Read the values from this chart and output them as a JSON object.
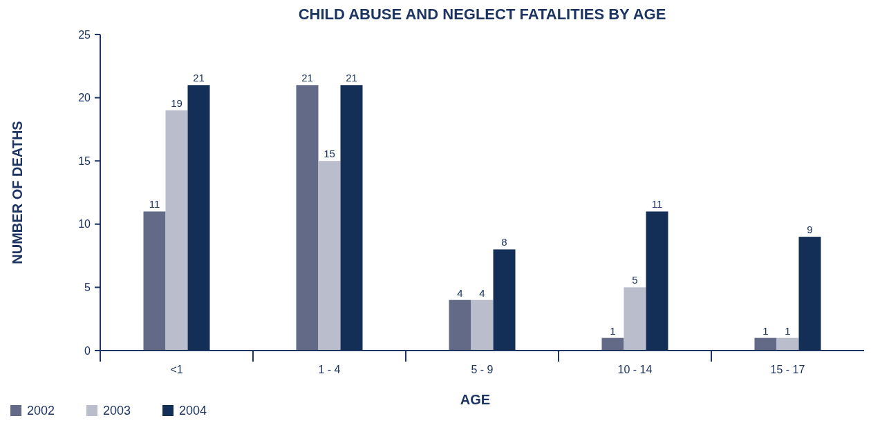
{
  "chart_data": {
    "type": "bar",
    "title": "CHILD ABUSE AND NEGLECT FATALITIES BY AGE",
    "xlabel": "AGE",
    "ylabel": "NUMBER OF DEATHS",
    "categories": [
      "<1",
      "1 - 4",
      "5 - 9",
      "10 - 14",
      "15 - 17"
    ],
    "series": [
      {
        "name": "2002",
        "color": "#636a87",
        "values": [
          11,
          21,
          4,
          1,
          1
        ]
      },
      {
        "name": "2003",
        "color": "#babdcb",
        "values": [
          19,
          15,
          4,
          5,
          1
        ]
      },
      {
        "name": "2004",
        "color": "#132f57",
        "values": [
          21,
          21,
          8,
          11,
          9
        ]
      }
    ],
    "ylim": [
      0,
      25
    ],
    "yticks": [
      0,
      5,
      10,
      15,
      20,
      25
    ],
    "data_labels": true,
    "legend": "bottom left",
    "grid": false
  }
}
